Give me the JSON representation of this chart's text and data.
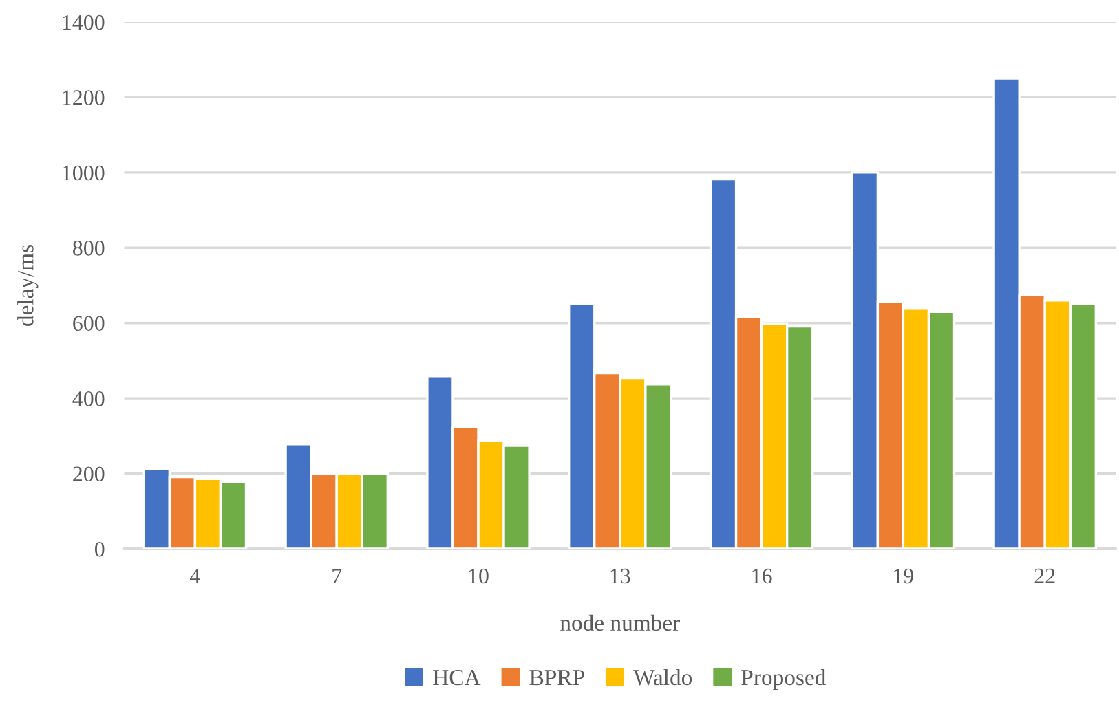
{
  "chart_data": {
    "type": "bar",
    "xlabel": "node number",
    "ylabel": "delay/ms",
    "categories": [
      "4",
      "7",
      "10",
      "13",
      "16",
      "19",
      "22"
    ],
    "series": [
      {
        "name": "HCA",
        "color": "#4472c4",
        "values": [
          212,
          278,
          459,
          652,
          982,
          1000,
          1250
        ]
      },
      {
        "name": "BPRP",
        "color": "#ed7d31",
        "values": [
          191,
          200,
          323,
          467,
          617,
          657,
          675
        ]
      },
      {
        "name": "Waldo",
        "color": "#ffc000",
        "values": [
          186,
          200,
          288,
          454,
          599,
          638,
          660
        ]
      },
      {
        "name": "Proposed",
        "color": "#70ad47",
        "values": [
          178,
          200,
          274,
          437,
          591,
          630,
          652
        ]
      }
    ],
    "ylim": [
      0,
      1400
    ],
    "yticks": [
      0,
      200,
      400,
      600,
      800,
      1000,
      1200,
      1400
    ],
    "grid": "y",
    "legend": "bottom"
  }
}
